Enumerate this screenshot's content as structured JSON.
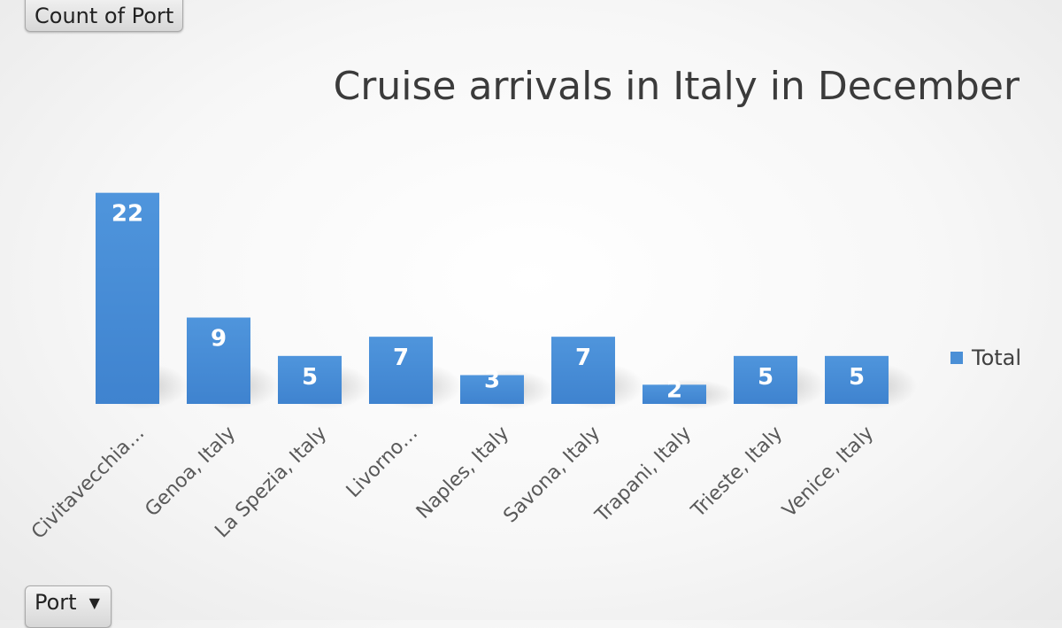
{
  "pivot": {
    "value_field": "Count of Port",
    "axis_field": "Port",
    "axis_field_arrow": "▼"
  },
  "chart_data": {
    "type": "bar",
    "title": "Cruise arrivals in Italy in December",
    "categories": [
      "Civitavecchia…",
      "Genoa, Italy",
      "La Spezia, Italy",
      "Livorno…",
      "Naples, Italy",
      "Savona, Italy",
      "Trapani, Italy",
      "Trieste, Italy",
      "Venice, Italy"
    ],
    "series": [
      {
        "name": "Total",
        "values": [
          22,
          9,
          5,
          7,
          3,
          7,
          2,
          5,
          5
        ],
        "color": "#4a8fd6"
      }
    ],
    "ylim": [
      0,
      24
    ],
    "grid": false,
    "legend_position": "right",
    "data_labels": true
  }
}
